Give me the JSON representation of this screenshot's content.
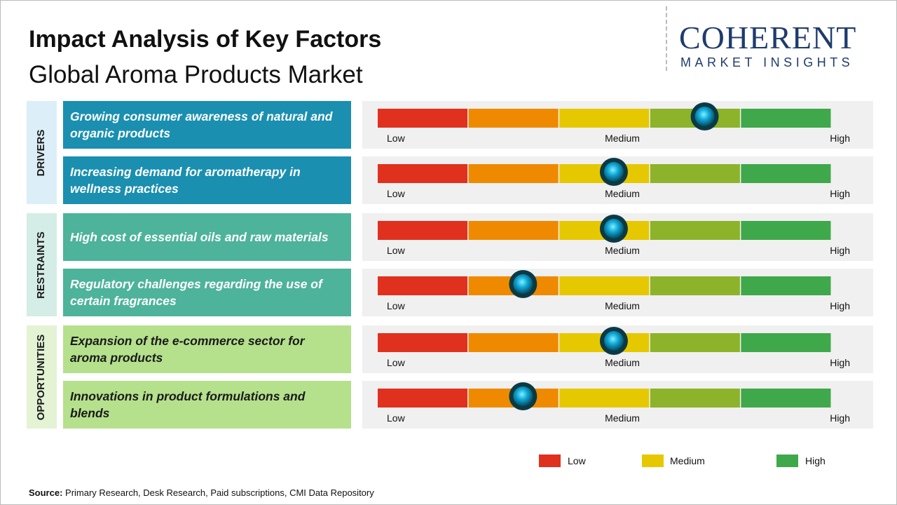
{
  "header": {
    "title": "Impact Analysis of Key Factors",
    "subtitle": "Global Aroma Products Market"
  },
  "logo": {
    "name": "COHERENT",
    "tagline": "MARKET INSIGHTS"
  },
  "scale": {
    "labels": [
      "Low",
      "Medium",
      "High"
    ],
    "segment_colors": [
      "#e0301e",
      "#ef8a00",
      "#e6c800",
      "#8db32a",
      "#3fa84a"
    ]
  },
  "groups": [
    {
      "name": "DRIVERS",
      "color": "#1a8fb0",
      "panel": "#dceef7",
      "text_color": "#ffffff",
      "factors": [
        {
          "text": "Growing consumer awareness of natural and organic products",
          "impact": 3.6
        },
        {
          "text": "Increasing demand for aromatherapy in wellness practices",
          "impact": 2.6
        }
      ]
    },
    {
      "name": "RESTRAINTS",
      "color": "#4db39a",
      "panel": "#d4ede6",
      "text_color": "#ffffff",
      "factors": [
        {
          "text": "High cost of essential oils and raw materials",
          "impact": 2.6
        },
        {
          "text": "Regulatory challenges regarding the use of certain fragrances",
          "impact": 1.6
        }
      ]
    },
    {
      "name": "OPPORTUNITIES",
      "color": "#b5e08c",
      "panel": "#e3f3d4",
      "text_color": "#1a1a1a",
      "factors": [
        {
          "text": "Expansion of the e-commerce sector for aroma products",
          "impact": 2.6
        },
        {
          "text": "Innovations in product formulations and blends",
          "impact": 1.6
        }
      ]
    }
  ],
  "legend": [
    {
      "label": "Low",
      "color": "#e0301e"
    },
    {
      "label": "Medium",
      "color": "#e6c800"
    },
    {
      "label": "High",
      "color": "#3fa84a"
    }
  ],
  "source": {
    "label": "Source:",
    "text": "Primary Research, Desk Research, Paid subscriptions, CMI Data Repository"
  }
}
